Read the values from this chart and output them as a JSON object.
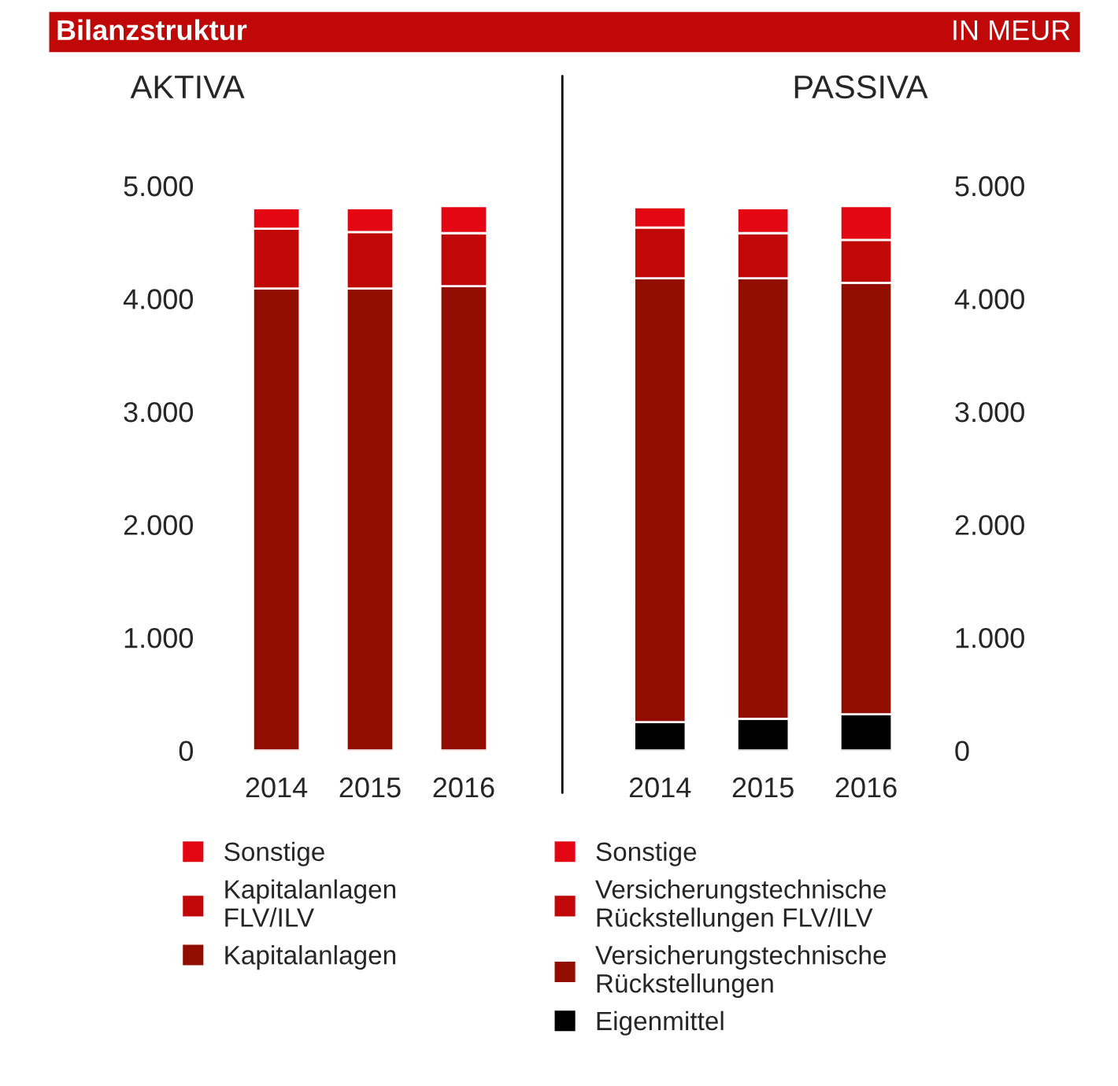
{
  "chart_data": [
    {
      "type": "bar",
      "title": "AKTIVA",
      "stacked": true,
      "legend": "bottom",
      "grid": false,
      "annotations": [
        "Bilanzstruktur",
        "IN MEUR"
      ],
      "categories": [
        "2014",
        "2015",
        "2016"
      ],
      "ylim": [
        0,
        5000
      ],
      "yticks": [
        0,
        {
          "value": 1000,
          "label": "1.000"
        },
        {
          "value": 2000,
          "label": "2.000"
        },
        {
          "value": 3000,
          "label": "3.000"
        },
        {
          "value": 4000,
          "label": "4.000"
        },
        {
          "value": 5000,
          "label": "5.000"
        }
      ],
      "series": [
        {
          "name": "Kapitalanlagen",
          "color": "#910d00",
          "values": [
            4090,
            4090,
            4110
          ]
        },
        {
          "name": "Kapitalanlagen\nFLV/ILV",
          "color": "#c00808",
          "values": [
            530,
            500,
            470
          ]
        },
        {
          "name": "Sonstige",
          "color": "#e30613",
          "values": [
            180,
            210,
            240
          ]
        }
      ]
    },
    {
      "type": "bar",
      "title": "PASSIVA",
      "stacked": true,
      "legend": "bottom",
      "grid": false,
      "categories": [
        "2014",
        "2015",
        "2016"
      ],
      "ylim": [
        0,
        5000
      ],
      "yticks": [
        0,
        {
          "value": 1000,
          "label": "1.000"
        },
        {
          "value": 2000,
          "label": "2.000"
        },
        {
          "value": 3000,
          "label": "3.000"
        },
        {
          "value": 4000,
          "label": "4.000"
        },
        {
          "value": 5000,
          "label": "5.000"
        }
      ],
      "series": [
        {
          "name": "Eigenmittel",
          "color": "#000000",
          "values": [
            250,
            280,
            320
          ]
        },
        {
          "name": "Versicherungstechnische\nRückstellungen",
          "color": "#910d00",
          "values": [
            3930,
            3900,
            3820
          ]
        },
        {
          "name": "Versicherungstechnische\nRückstellungen FLV/ILV",
          "color": "#c00808",
          "values": [
            450,
            400,
            380
          ]
        },
        {
          "name": "Sonstige",
          "color": "#e30613",
          "values": [
            180,
            220,
            300
          ]
        }
      ]
    }
  ]
}
